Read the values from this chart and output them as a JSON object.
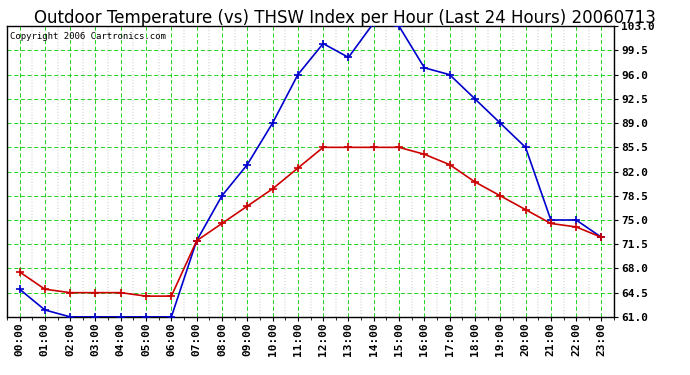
{
  "title": "Outdoor Temperature (vs) THSW Index per Hour (Last 24 Hours) 20060713",
  "copyright": "Copyright 2006 Cartronics.com",
  "hours": [
    "00:00",
    "01:00",
    "02:00",
    "03:00",
    "04:00",
    "05:00",
    "06:00",
    "07:00",
    "08:00",
    "09:00",
    "10:00",
    "11:00",
    "12:00",
    "13:00",
    "14:00",
    "15:00",
    "16:00",
    "17:00",
    "18:00",
    "19:00",
    "20:00",
    "21:00",
    "22:00",
    "23:00"
  ],
  "temp": [
    67.5,
    65.0,
    64.5,
    64.5,
    64.5,
    64.0,
    64.0,
    72.0,
    74.5,
    77.0,
    79.5,
    82.5,
    85.5,
    85.5,
    85.5,
    85.5,
    84.5,
    83.0,
    80.5,
    78.5,
    76.5,
    74.5,
    74.0,
    72.5
  ],
  "thsw": [
    65.0,
    62.0,
    61.0,
    61.0,
    61.0,
    61.0,
    61.0,
    72.0,
    78.5,
    83.0,
    89.0,
    96.0,
    100.5,
    98.5,
    103.5,
    103.0,
    97.0,
    96.0,
    92.5,
    89.0,
    85.5,
    75.0,
    75.0,
    72.5
  ],
  "temp_color": "#cc0000",
  "thsw_color": "#0000cc",
  "grid_color": "#00cc00",
  "minor_grid_color": "#888888",
  "bg_color": "#ffffff",
  "ylim": [
    61.0,
    103.0
  ],
  "yticks": [
    61.0,
    64.5,
    68.0,
    71.5,
    75.0,
    78.5,
    82.0,
    85.5,
    89.0,
    92.5,
    96.0,
    99.5,
    103.0
  ],
  "title_fontsize": 12,
  "copyright_fontsize": 6.5,
  "tick_fontsize": 8,
  "marker": "+",
  "marker_size": 6,
  "line_width": 1.2,
  "border_color": "#000000"
}
